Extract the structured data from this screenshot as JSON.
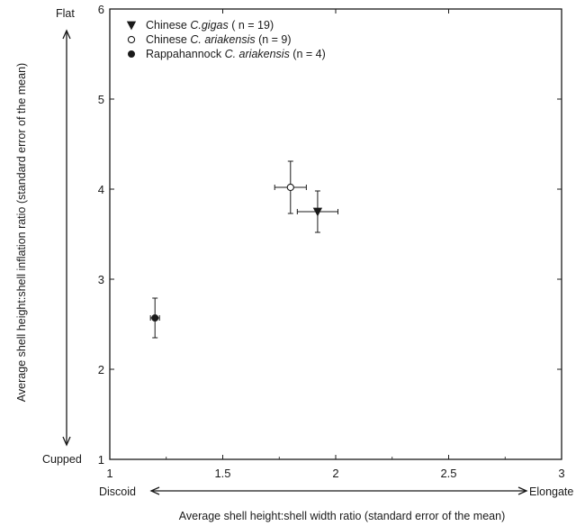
{
  "chart_data": {
    "type": "scatter",
    "xlabel": "Average shell height:shell width ratio (standard error of the mean)",
    "ylabel": "Average shell height:shell inflation ratio (standard error of the mean)",
    "xlim": [
      1,
      3
    ],
    "ylim": [
      1,
      6
    ],
    "xticks": [
      "1",
      "1.5",
      "2",
      "2.5",
      "3"
    ],
    "yticks": [
      "1",
      "2",
      "3",
      "4",
      "5",
      "6"
    ],
    "x_arrow_labels": {
      "left": "Discoid",
      "right": "Elongate"
    },
    "y_arrow_labels": {
      "top": "Flat",
      "bottom": "Cupped"
    },
    "legend_position": "top-left",
    "series": [
      {
        "name_parts": [
          "Chinese ",
          "C.gigas",
          " ( n = 19)"
        ],
        "marker": "filled-down-triangle",
        "points": [
          {
            "x": 1.92,
            "y": 3.75,
            "x_err": 0.09,
            "y_err": 0.23
          }
        ]
      },
      {
        "name_parts": [
          "Chinese ",
          "C. ariakensis",
          " (n = 9)"
        ],
        "marker": "open-circle",
        "points": [
          {
            "x": 1.8,
            "y": 4.02,
            "x_err": 0.07,
            "y_err": 0.29
          }
        ]
      },
      {
        "name_parts": [
          "Rappahannock ",
          "C. ariakensis",
          "  (n = 4)"
        ],
        "marker": "filled-circle",
        "points": [
          {
            "x": 1.2,
            "y": 2.57,
            "x_err": 0.02,
            "y_err": 0.22
          }
        ]
      }
    ]
  }
}
